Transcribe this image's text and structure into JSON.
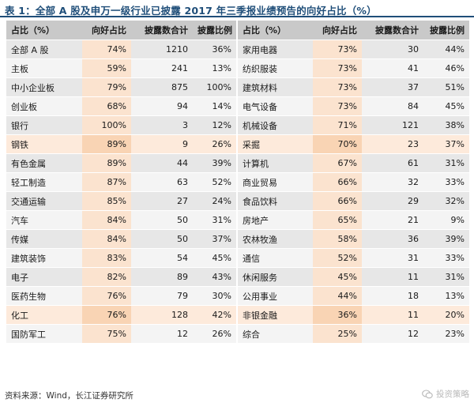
{
  "title": "表 1：全部 A 股及申万一级行业已披露 2017 年三季报业绩预告的向好占比（%）",
  "headers": [
    "占比（%）",
    "向好占比",
    "披露数合计",
    "披露比例",
    "占比（%）",
    "向好占比",
    "披露数合计",
    "披露比例"
  ],
  "rows": [
    {
      "l_name": "全部 A 股",
      "l_good": "74%",
      "l_count": "1210",
      "l_ratio": "36%",
      "r_name": "家用电器",
      "r_good": "73%",
      "r_count": "30",
      "r_ratio": "44%"
    },
    {
      "l_name": "主板",
      "l_good": "59%",
      "l_count": "241",
      "l_ratio": "13%",
      "r_name": "纺织服装",
      "r_good": "73%",
      "r_count": "41",
      "r_ratio": "46%"
    },
    {
      "l_name": "中小企业板",
      "l_good": "79%",
      "l_count": "875",
      "l_ratio": "100%",
      "r_name": "建筑材料",
      "r_good": "73%",
      "r_count": "37",
      "r_ratio": "51%"
    },
    {
      "l_name": "创业板",
      "l_good": "68%",
      "l_count": "94",
      "l_ratio": "14%",
      "r_name": "电气设备",
      "r_good": "73%",
      "r_count": "84",
      "r_ratio": "45%"
    },
    {
      "l_name": "银行",
      "l_good": "100%",
      "l_count": "3",
      "l_ratio": "12%",
      "r_name": "机械设备",
      "r_good": "71%",
      "r_count": "121",
      "r_ratio": "38%"
    },
    {
      "l_name": "钢铁",
      "l_good": "89%",
      "l_count": "9",
      "l_ratio": "26%",
      "r_name": "采掘",
      "r_good": "70%",
      "r_count": "23",
      "r_ratio": "37%"
    },
    {
      "l_name": "有色金属",
      "l_good": "89%",
      "l_count": "44",
      "l_ratio": "39%",
      "r_name": "计算机",
      "r_good": "67%",
      "r_count": "61",
      "r_ratio": "31%"
    },
    {
      "l_name": "轻工制造",
      "l_good": "87%",
      "l_count": "63",
      "l_ratio": "52%",
      "r_name": "商业贸易",
      "r_good": "66%",
      "r_count": "32",
      "r_ratio": "33%"
    },
    {
      "l_name": "交通运输",
      "l_good": "85%",
      "l_count": "27",
      "l_ratio": "24%",
      "r_name": "食品饮料",
      "r_good": "66%",
      "r_count": "29",
      "r_ratio": "32%"
    },
    {
      "l_name": "汽车",
      "l_good": "84%",
      "l_count": "50",
      "l_ratio": "31%",
      "r_name": "房地产",
      "r_good": "65%",
      "r_count": "21",
      "r_ratio": "9%"
    },
    {
      "l_name": "传媒",
      "l_good": "84%",
      "l_count": "50",
      "l_ratio": "37%",
      "r_name": "农林牧渔",
      "r_good": "58%",
      "r_count": "36",
      "r_ratio": "39%"
    },
    {
      "l_name": "建筑装饰",
      "l_good": "83%",
      "l_count": "54",
      "l_ratio": "45%",
      "r_name": "通信",
      "r_good": "52%",
      "r_count": "31",
      "r_ratio": "33%"
    },
    {
      "l_name": "电子",
      "l_good": "82%",
      "l_count": "89",
      "l_ratio": "43%",
      "r_name": "休闲服务",
      "r_good": "45%",
      "r_count": "11",
      "r_ratio": "31%"
    },
    {
      "l_name": "医药生物",
      "l_good": "76%",
      "l_count": "79",
      "l_ratio": "30%",
      "r_name": "公用事业",
      "r_good": "44%",
      "r_count": "18",
      "r_ratio": "13%"
    },
    {
      "l_name": "化工",
      "l_good": "76%",
      "l_count": "128",
      "l_ratio": "42%",
      "r_name": "非银金融",
      "r_good": "36%",
      "r_count": "11",
      "r_ratio": "20%"
    },
    {
      "l_name": "国防军工",
      "l_good": "75%",
      "l_count": "12",
      "l_ratio": "26%",
      "r_name": "综合",
      "r_good": "25%",
      "r_count": "12",
      "r_ratio": "23%"
    }
  ],
  "highlight_rows": [
    5,
    14
  ],
  "source": "资料来源：Wind，长江证券研究所",
  "watermark": "投资策略"
}
